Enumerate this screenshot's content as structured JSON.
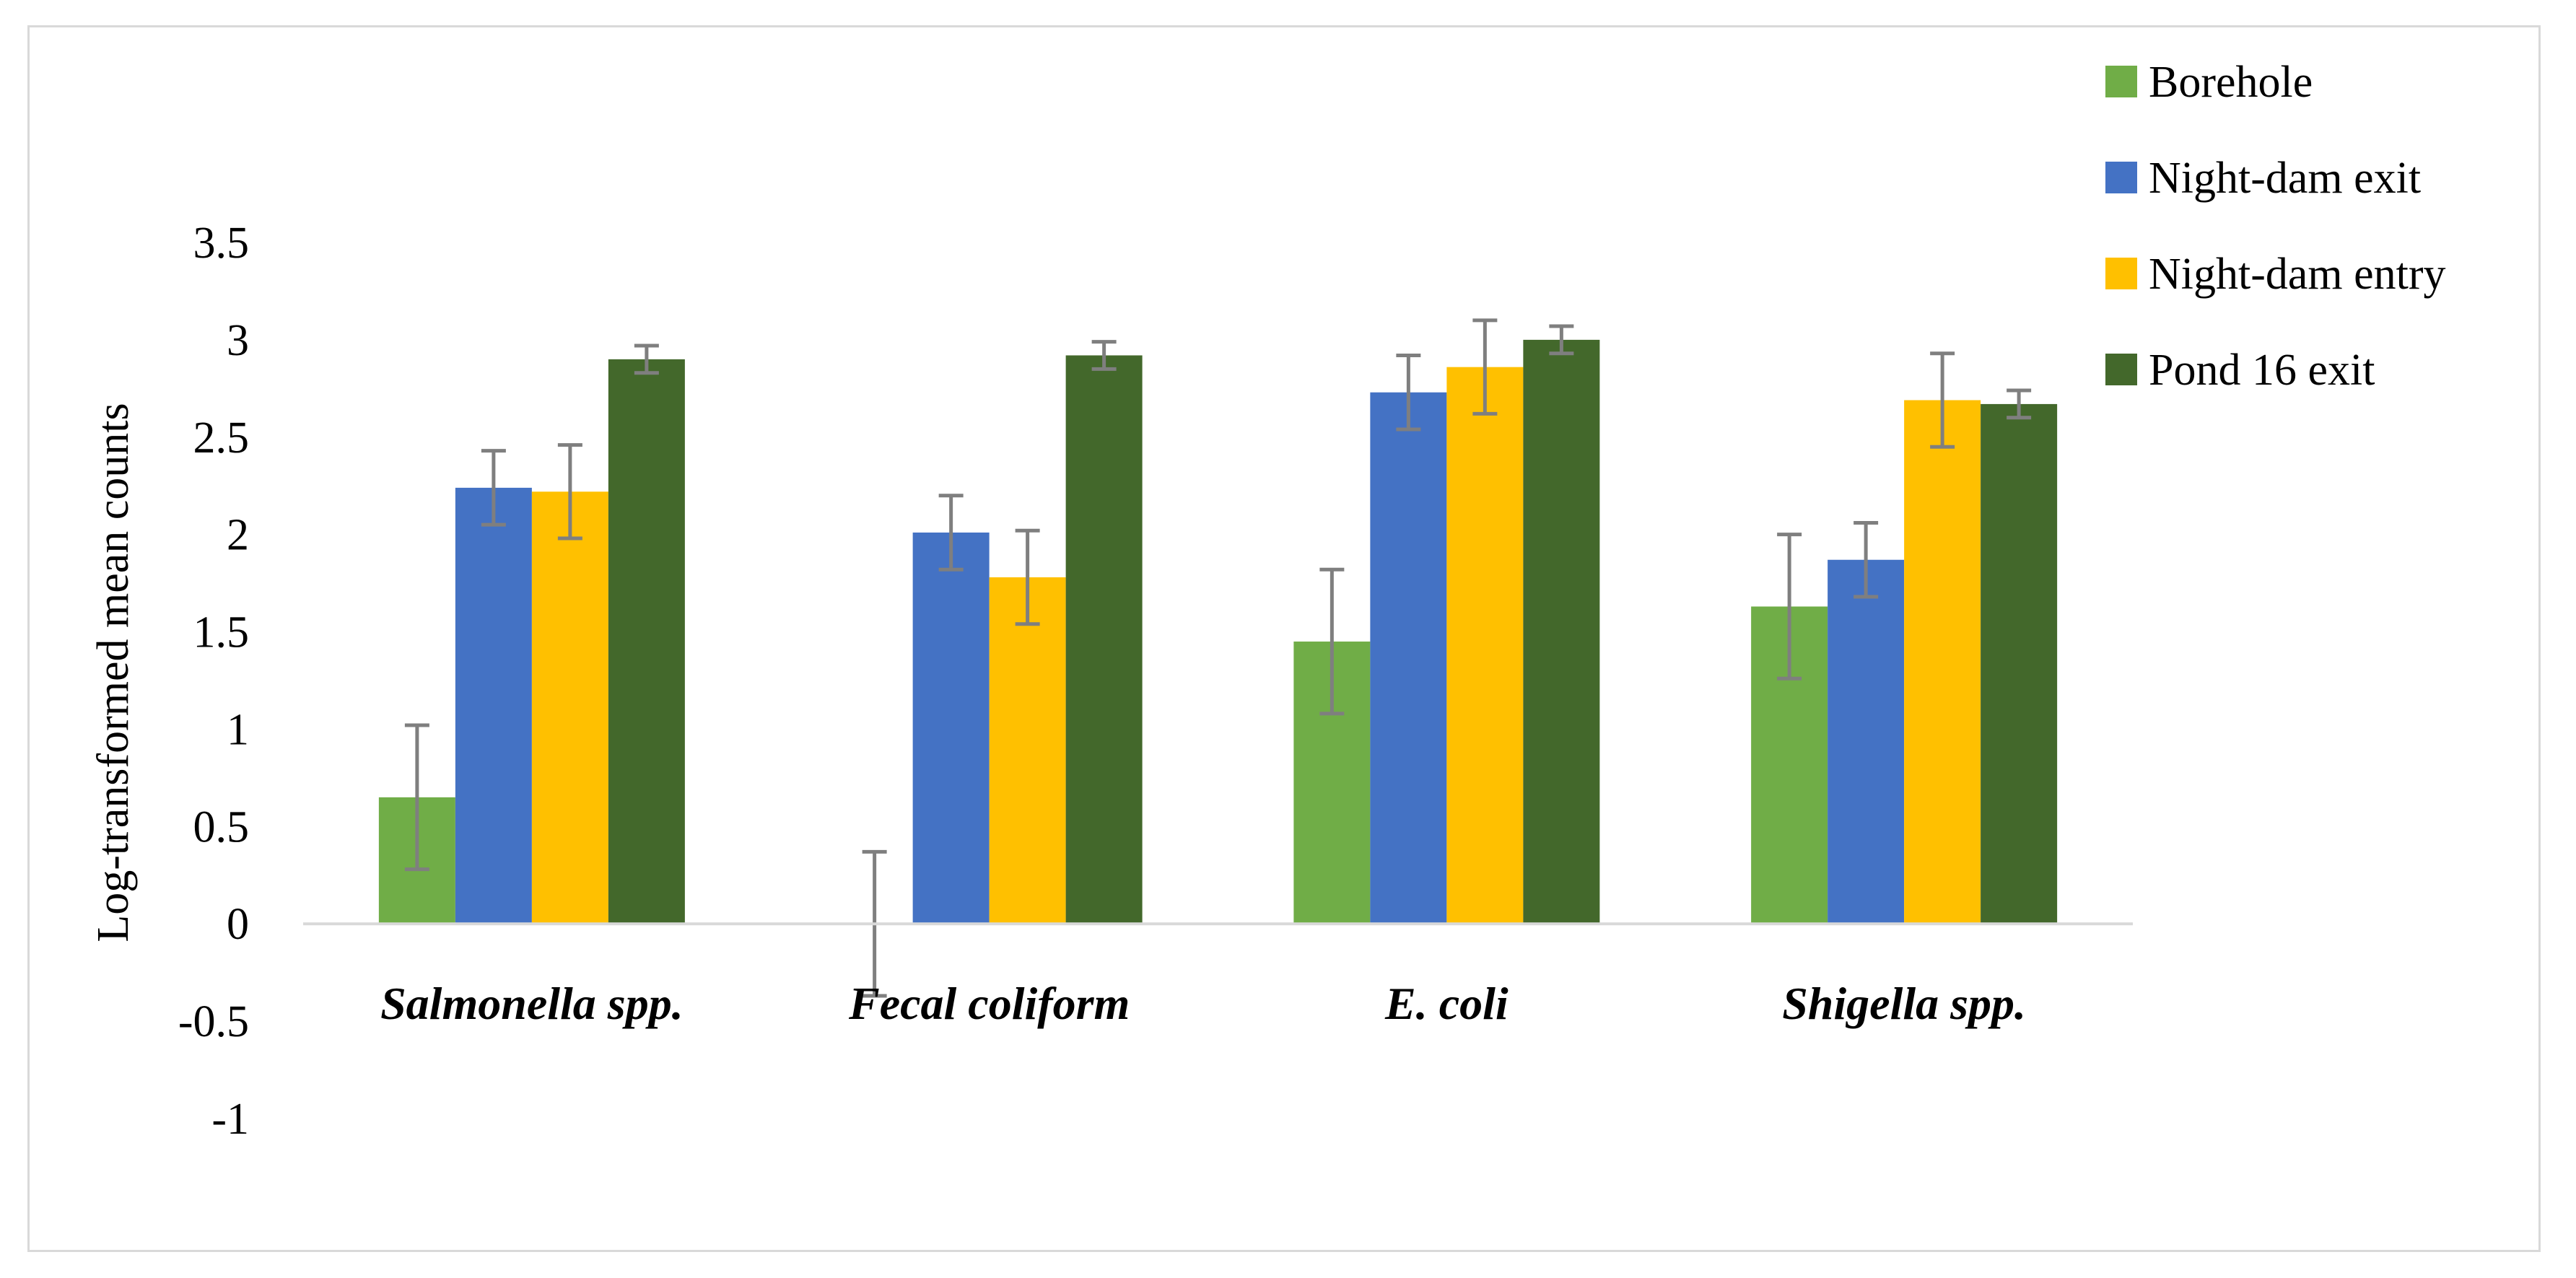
{
  "chart_data": {
    "type": "bar",
    "title": "",
    "xlabel": "",
    "ylabel": "Log-transformed mean counts",
    "ylim": [
      -1,
      3.5
    ],
    "yticks": [
      "3.5",
      "3",
      "2.5",
      "2",
      "1.5",
      "1",
      "0.5",
      "0",
      "-0.5",
      "-1"
    ],
    "grid": false,
    "legend_position": "top-right",
    "categories": [
      "Salmonella spp.",
      "Fecal coliform",
      "E. coli",
      "Shigella spp."
    ],
    "series": [
      {
        "name": "Borehole",
        "color": "#70ad47",
        "values": [
          0.65,
          0.0,
          1.45,
          1.63
        ],
        "errors": [
          0.37,
          0.37,
          0.37,
          0.37
        ]
      },
      {
        "name": "Night-dam exit",
        "color": "#4472c4",
        "values": [
          2.24,
          2.01,
          2.73,
          1.87
        ],
        "errors": [
          0.19,
          0.19,
          0.19,
          0.19
        ]
      },
      {
        "name": "Night-dam entry",
        "color": "#ffc000",
        "values": [
          2.22,
          1.78,
          2.86,
          2.69
        ],
        "errors": [
          0.24,
          0.24,
          0.24,
          0.24
        ]
      },
      {
        "name": "Pond 16 exit",
        "color": "#43682b",
        "values": [
          2.9,
          2.92,
          3.0,
          2.67
        ],
        "errors": [
          0.07,
          0.07,
          0.07,
          0.07
        ]
      }
    ],
    "error_bar_color": "#7f7f7f",
    "axis_color": "#d9d9d9"
  }
}
